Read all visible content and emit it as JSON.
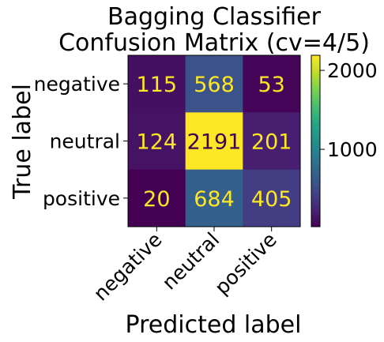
{
  "chart_data": {
    "type": "heatmap",
    "title_lines": [
      "Bagging Classifier",
      "Confusion Matrix (cv=4/5)"
    ],
    "xlabel": "Predicted label",
    "ylabel": "True label",
    "x_categories": [
      "negative",
      "neutral",
      "positive"
    ],
    "y_categories": [
      "negative",
      "neutral",
      "positive"
    ],
    "values": [
      [
        115,
        568,
        53
      ],
      [
        124,
        2191,
        201
      ],
      [
        20,
        684,
        405
      ]
    ],
    "colormap": "viridis",
    "value_range": [
      20,
      2191
    ],
    "colorbar_ticks": [
      1000,
      2000
    ],
    "colorbar_tick_labels": [
      "1000",
      "2000"
    ],
    "text_color_dark_cells": "#fde725",
    "text_color_light_cells": "#440154"
  }
}
